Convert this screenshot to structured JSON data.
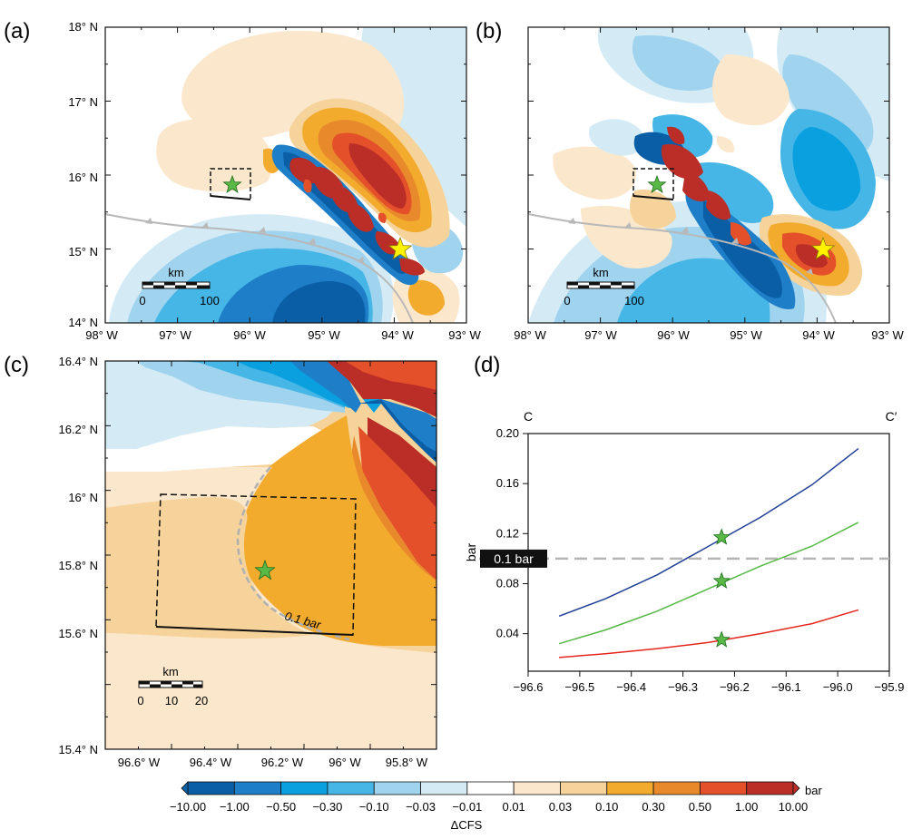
{
  "panels": {
    "a": {
      "label": "(a)"
    },
    "b": {
      "label": "(b)"
    },
    "c": {
      "label": "(c)"
    },
    "d": {
      "label": "(d)"
    }
  },
  "map_axes": {
    "lon_ticks": [
      "98° W",
      "97° W",
      "96° W",
      "95° W",
      "94° W",
      "93° W"
    ],
    "lat_ticks": [
      "18° N",
      "17° N",
      "16° N",
      "15° N",
      "14° N"
    ]
  },
  "zoom_axes": {
    "lon_ticks": [
      "96.6° W",
      "96.4° W",
      "96.2° W",
      "96° W",
      "95.8° W"
    ],
    "lat_ticks": [
      "16.4° N",
      "16.2° N",
      "16° N",
      "15.8° N",
      "15.6° N",
      "15.4° N"
    ]
  },
  "scalebars": {
    "a": {
      "unit": "km",
      "labels": [
        "0",
        "100"
      ]
    },
    "b": {
      "unit": "km",
      "labels": [
        "0",
        "100"
      ]
    },
    "c": {
      "unit": "km",
      "labels": [
        "0",
        "10",
        "20"
      ]
    }
  },
  "contour_label": "0.1 bar",
  "colors": {
    "cool": [
      "#0a5ea6",
      "#1e7fc8",
      "#0aa0e0",
      "#46b6e6",
      "#9fd3ee",
      "#d4ebf6"
    ],
    "neutral": "#ffffff",
    "warm": [
      "#fbe7cc",
      "#f6d39a",
      "#f3ab2d",
      "#e8892b",
      "#e4502a",
      "#bb2d27"
    ],
    "fault": "#b8b8b8",
    "epicenter_star": "#fff200",
    "station_star": "#5ab847",
    "series_blue": "#1f3f96",
    "series_green": "#55b845",
    "series_red": "#e4261c",
    "threshold_line": "#b5b5b5"
  },
  "colorbar": {
    "ticks": [
      "−10.00",
      "−1.00",
      "−0.50",
      "−0.30",
      "−0.10",
      "−0.03",
      "−0.01",
      "0.01",
      "0.03",
      "0.10",
      "0.30",
      "0.50",
      "1.00",
      "10.00"
    ],
    "unit": "bar",
    "title": "ΔCFS"
  },
  "chart_data": {
    "type": "line",
    "title": "",
    "xlabel": "",
    "ylabel": "bar",
    "profile_start": "C",
    "profile_end": "C′",
    "xlim": [
      -96.6,
      -95.9
    ],
    "ylim": [
      0.01,
      0.2
    ],
    "xticks": [
      "−96.6",
      "−96.5",
      "−96.4",
      "−96.3",
      "−96.2",
      "−96.1",
      "−96.0",
      "−95.9"
    ],
    "yticks": [
      "0.20",
      "0.16",
      "0.12",
      "0.08",
      "0.04"
    ],
    "threshold": {
      "value": 0.1,
      "label": "0.1 bar"
    },
    "series": [
      {
        "color": "#1f3f96",
        "x": [
          -96.54,
          -96.45,
          -96.35,
          -96.25,
          -96.15,
          -96.05,
          -95.96
        ],
        "y": [
          0.054,
          0.068,
          0.087,
          0.11,
          0.133,
          0.159,
          0.188
        ]
      },
      {
        "color": "#55b845",
        "x": [
          -96.54,
          -96.45,
          -96.35,
          -96.25,
          -96.15,
          -96.05,
          -95.96
        ],
        "y": [
          0.032,
          0.043,
          0.058,
          0.076,
          0.094,
          0.11,
          0.129
        ]
      },
      {
        "color": "#e4261c",
        "x": [
          -96.54,
          -96.45,
          -96.35,
          -96.25,
          -96.15,
          -96.05,
          -95.96
        ],
        "y": [
          0.021,
          0.024,
          0.028,
          0.033,
          0.04,
          0.048,
          0.059
        ]
      }
    ],
    "markers": [
      {
        "x": -96.225,
        "y": 0.117
      },
      {
        "x": -96.225,
        "y": 0.082
      },
      {
        "x": -96.225,
        "y": 0.035
      }
    ]
  }
}
